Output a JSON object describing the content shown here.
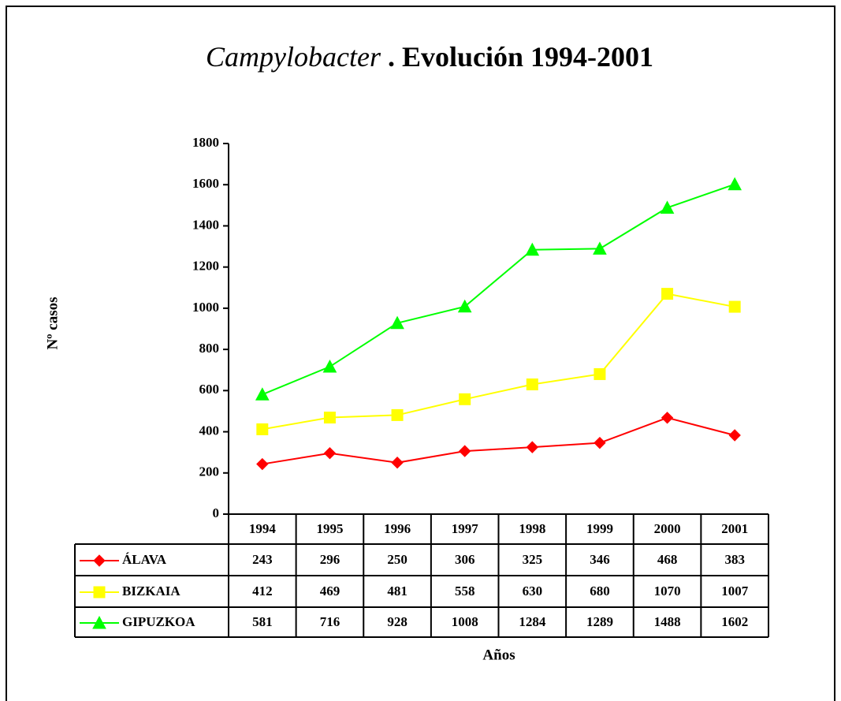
{
  "chart_data": {
    "type": "line",
    "title": {
      "italic": "Campylobacter",
      "rest": " . Evolución 1994-2001"
    },
    "ylabel": "Nº casos",
    "xlabel": "Años",
    "categories": [
      "1994",
      "1995",
      "1996",
      "1997",
      "1998",
      "1999",
      "2000",
      "2001"
    ],
    "series": [
      {
        "name": "ÁLAVA",
        "color": "#ff0000",
        "marker": "diamond",
        "values": [
          243,
          296,
          250,
          306,
          325,
          346,
          468,
          383
        ]
      },
      {
        "name": "BIZKAIA",
        "color": "#ffff00",
        "marker": "square",
        "values": [
          412,
          469,
          481,
          558,
          630,
          680,
          1070,
          1007
        ]
      },
      {
        "name": "GIPUZKOA",
        "color": "#00ff00",
        "marker": "triangle",
        "values": [
          581,
          716,
          928,
          1008,
          1284,
          1289,
          1488,
          1602
        ]
      }
    ],
    "ylim": [
      0,
      1800
    ],
    "yticks": [
      0,
      200,
      400,
      600,
      800,
      1000,
      1200,
      1400,
      1600,
      1800
    ],
    "grid": false,
    "data_table": true
  }
}
